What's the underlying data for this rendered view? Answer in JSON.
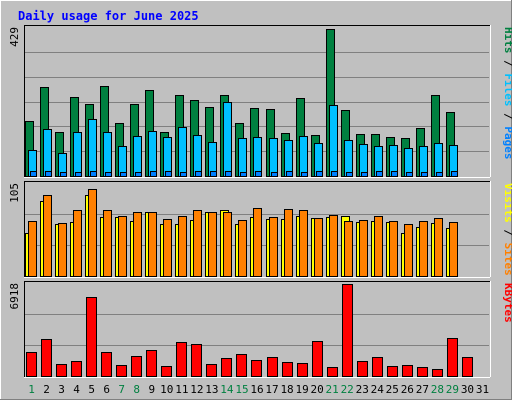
{
  "chart_data": [
    {
      "type": "bar",
      "title": "Daily usage for June 2025",
      "panel": "requests",
      "ymax_label": "429",
      "ylim": [
        0,
        429
      ],
      "grid": true,
      "legend": [
        "Pages",
        "Files",
        "Hits"
      ],
      "colors": {
        "Hits": "#008040",
        "Files": "#00c0ff",
        "Pages": "#0080ff"
      },
      "categories": [
        "1",
        "2",
        "3",
        "4",
        "5",
        "6",
        "7",
        "8",
        "9",
        "10",
        "11",
        "12",
        "13",
        "14",
        "15",
        "16",
        "17",
        "18",
        "19",
        "20",
        "21",
        "22",
        "23",
        "24",
        "25",
        "26",
        "27",
        "28",
        "29",
        "30",
        "31"
      ],
      "weekend_days": [
        "1",
        "7",
        "8",
        "14",
        "15",
        "21",
        "22",
        "28",
        "29"
      ],
      "series": [
        {
          "name": "Hits",
          "values": [
            157,
            256,
            127,
            227,
            207,
            259,
            153,
            208,
            248,
            126,
            234,
            219,
            198,
            234,
            152,
            196,
            194,
            123,
            225,
            118,
            422,
            190,
            121,
            122,
            111,
            109,
            137,
            232,
            183,
            0,
            0
          ]
        },
        {
          "name": "Files",
          "values": [
            74,
            136,
            67,
            126,
            165,
            127,
            85,
            114,
            129,
            112,
            140,
            118,
            98,
            213,
            110,
            113,
            109,
            103,
            116,
            96,
            203,
            103,
            91,
            85,
            89,
            81,
            86,
            96,
            89,
            0,
            0
          ]
        },
        {
          "name": "Pages",
          "values": [
            14,
            14,
            12,
            11,
            15,
            12,
            12,
            11,
            13,
            15,
            12,
            14,
            14,
            13,
            12,
            13,
            12,
            14,
            12,
            13,
            15,
            12,
            12,
            13,
            14,
            12,
            11,
            12,
            13,
            0,
            0
          ]
        }
      ]
    },
    {
      "type": "bar",
      "panel": "visitors",
      "ymax_label": "105",
      "ylim": [
        0,
        105
      ],
      "grid": true,
      "legend": [
        "Sites",
        "Visits"
      ],
      "colors": {
        "Visits": "#ffff00",
        "Sites": "#ff8000"
      },
      "categories": [
        "1",
        "2",
        "3",
        "4",
        "5",
        "6",
        "7",
        "8",
        "9",
        "10",
        "11",
        "12",
        "13",
        "14",
        "15",
        "16",
        "17",
        "18",
        "19",
        "20",
        "21",
        "22",
        "23",
        "24",
        "25",
        "26",
        "27",
        "28",
        "29",
        "30",
        "31"
      ],
      "series": [
        {
          "name": "Visits",
          "values": [
            49,
            85,
            59,
            61,
            92,
            67,
            67,
            62,
            72,
            59,
            59,
            63,
            72,
            74,
            59,
            67,
            64,
            64,
            68,
            65,
            67,
            68,
            61,
            62,
            61,
            48,
            55,
            60,
            54,
            0,
            0
          ]
        },
        {
          "name": "Sites",
          "values": [
            62,
            92,
            60,
            74,
            98,
            74,
            68,
            72,
            72,
            64,
            68,
            74,
            72,
            72,
            63,
            77,
            67,
            76,
            75,
            66,
            69,
            62,
            63,
            68,
            62,
            59,
            62,
            66,
            61,
            0,
            0
          ]
        }
      ]
    },
    {
      "type": "bar",
      "panel": "kbytes",
      "ymax_label": "6918",
      "ylim": [
        0,
        6918
      ],
      "grid": true,
      "legend": [
        "KBytes"
      ],
      "colors": {
        "KBytes": "#ff0000"
      },
      "categories": [
        "1",
        "2",
        "3",
        "4",
        "5",
        "6",
        "7",
        "8",
        "9",
        "10",
        "11",
        "12",
        "13",
        "14",
        "15",
        "16",
        "17",
        "18",
        "19",
        "20",
        "21",
        "22",
        "23",
        "24",
        "25",
        "26",
        "27",
        "28",
        "29",
        "30",
        "31"
      ],
      "series": [
        {
          "name": "KBytes",
          "values": [
            1760,
            2780,
            920,
            1110,
            5910,
            1790,
            790,
            1490,
            1950,
            740,
            2560,
            2380,
            920,
            1330,
            1610,
            1160,
            1400,
            1040,
            960,
            2580,
            660,
            6880,
            1150,
            1380,
            780,
            820,
            650,
            520,
            2860,
            1390,
            0
          ]
        }
      ]
    }
  ]
}
